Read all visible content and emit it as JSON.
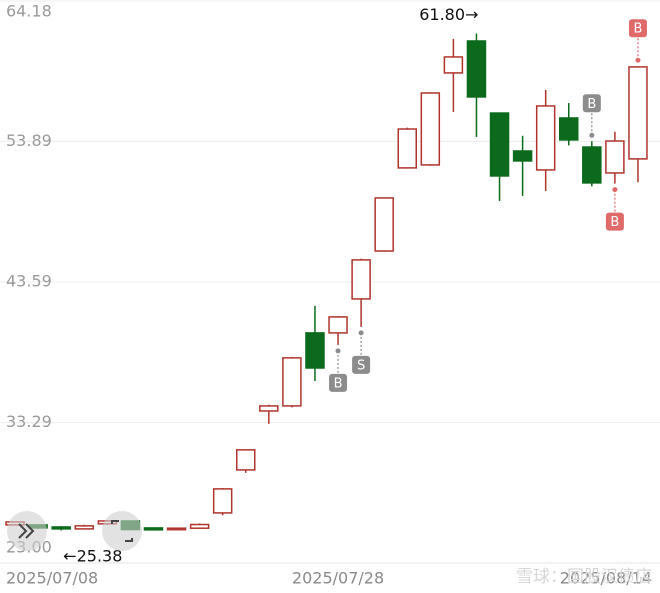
{
  "chart_data": {
    "type": "candlestick",
    "categories": [
      "2025/07/08",
      null,
      null,
      null,
      null,
      null,
      null,
      null,
      null,
      null,
      null,
      null,
      null,
      null,
      "2025/07/28",
      null,
      null,
      null,
      null,
      null,
      null,
      null,
      null,
      null,
      null,
      null,
      null,
      "2025/08/14"
    ],
    "open": [
      25.79,
      25.79,
      25.64,
      25.5,
      25.87,
      26.08,
      25.57,
      25.45,
      25.55,
      26.67,
      29.82,
      34.14,
      34.51,
      39.86,
      39.86,
      42.35,
      45.86,
      51.95,
      52.17,
      58.91,
      61.25,
      55.97,
      53.19,
      51.8,
      55.61,
      53.48,
      51.58,
      52.61
    ],
    "high": [
      26.05,
      25.85,
      25.7,
      25.8,
      26.15,
      26.1,
      25.6,
      25.6,
      25.9,
      28.5,
      31.3,
      34.6,
      38.1,
      41.84,
      41.1,
      45.3,
      49.8,
      54.9,
      57.5,
      61.4,
      61.8,
      56.0,
      54.3,
      57.66,
      56.7,
      53.9,
      54.6,
      59.4
    ],
    "low": [
      25.75,
      25.5,
      25.38,
      25.45,
      25.8,
      25.42,
      25.4,
      25.42,
      25.5,
      26.5,
      29.6,
      33.2,
      34.4,
      36.34,
      38.98,
      40.3,
      45.8,
      51.9,
      52.1,
      56.05,
      54.22,
      49.53,
      49.9,
      50.26,
      53.6,
      50.6,
      50.8,
      50.9
    ],
    "close": [
      26.01,
      25.57,
      25.5,
      25.72,
      26.08,
      25.45,
      25.43,
      25.55,
      25.82,
      28.43,
      31.29,
      34.51,
      38.03,
      37.29,
      41.03,
      45.21,
      49.75,
      54.8,
      57.44,
      60.08,
      57.15,
      51.36,
      52.46,
      56.49,
      54.0,
      50.85,
      53.92,
      59.35
    ],
    "up_color": "#b0342c",
    "down_color": "#0b6a1c",
    "ylim": [
      23.0,
      64.18
    ],
    "yticks": [
      {
        "value": 23.0,
        "label": "23.00"
      },
      33.29,
      43.59,
      53.89,
      64.18
    ],
    "grid": true,
    "annotations": [
      {
        "text": "61.80→",
        "side": "high"
      },
      {
        "text": "←25.38",
        "side": "low"
      }
    ],
    "signals": [
      {
        "text": "B",
        "at": 14,
        "side": "below",
        "color": "#8c8c8c"
      },
      {
        "text": "S",
        "at": 15,
        "side": "below",
        "color": "#8c8c8c"
      },
      {
        "text": "B",
        "at": 25,
        "side": "above",
        "color": "#8c8c8c"
      },
      {
        "text": "B",
        "at": 26,
        "side": "below",
        "color": "#e06a6a"
      },
      {
        "text": "B",
        "at": 27,
        "side": "above",
        "color": "#e06a6a"
      }
    ],
    "watermark": "雪球：国股汉债店"
  }
}
